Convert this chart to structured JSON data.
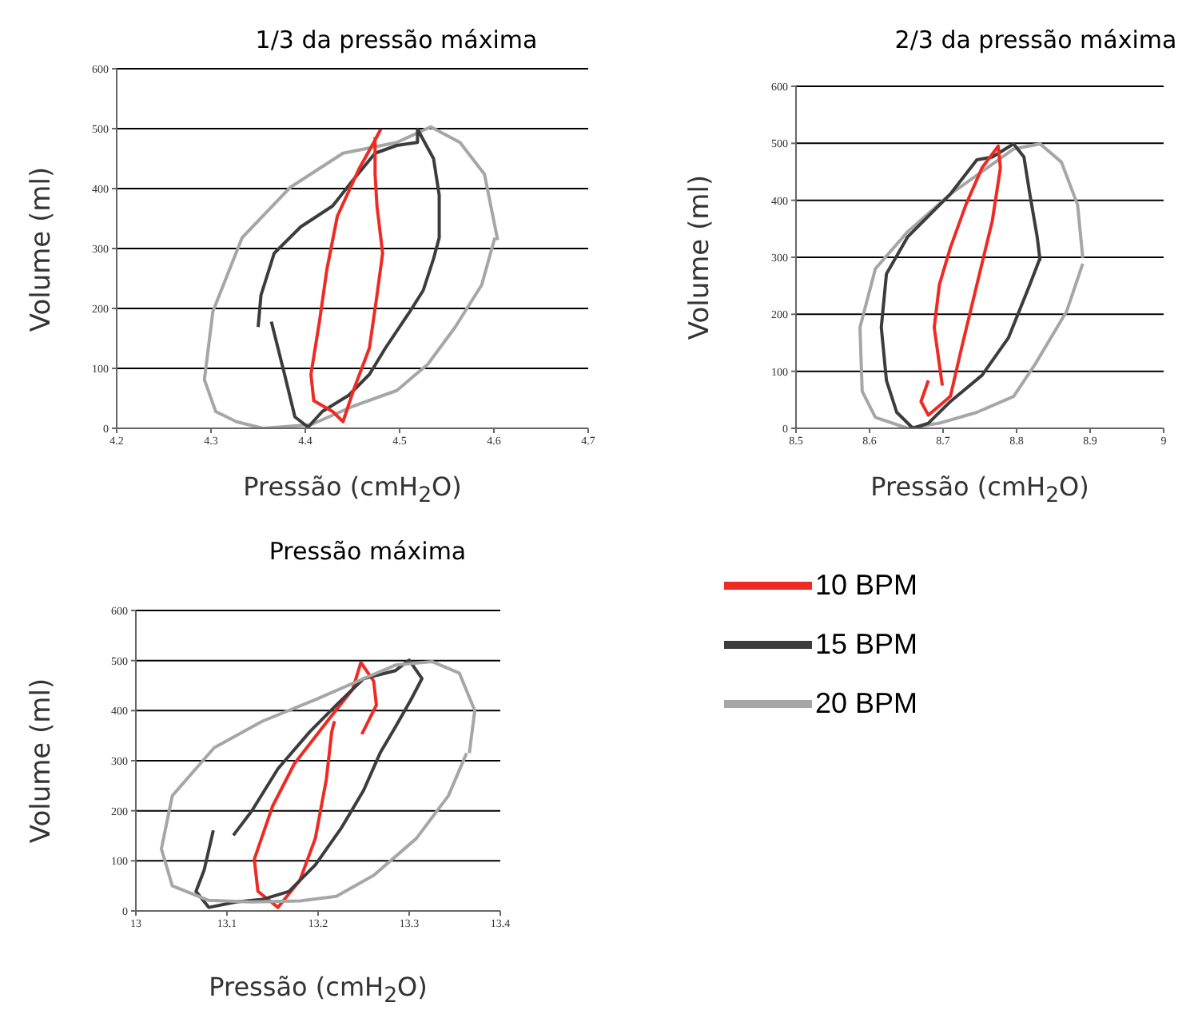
{
  "chart_data": [
    {
      "type": "line",
      "title": "1/3 da pressão máxima",
      "xlabel": "Pressão (cmH$_{2}$O)",
      "ylabel": "Volume (ml)",
      "xlim": [
        4.2,
        4.7
      ],
      "xticks": [
        4.2,
        4.3,
        4.4,
        4.5,
        4.6,
        4.7
      ],
      "ylim": [
        0,
        600
      ],
      "yticks": [
        0,
        100,
        200,
        300,
        400,
        500,
        600
      ],
      "grid": "y",
      "legend": false,
      "series": [
        {
          "color": "#a6a6a6",
          "x": [
            4.604,
            4.59,
            4.564,
            4.533,
            4.497,
            4.44,
            4.384,
            4.333,
            4.302,
            4.293,
            4.305,
            4.327,
            4.355,
            4.406,
            4.451,
            4.497,
            4.53,
            4.559,
            4.587,
            4.601
          ],
          "values": [
            314,
            424,
            477,
            503,
            477,
            459,
            402,
            318,
            195,
            81,
            28,
            11,
            0,
            6,
            37,
            63,
            107,
            169,
            239,
            318
          ]
        },
        {
          "color": "#3c3c3c",
          "x": [
            4.35,
            4.353,
            4.367,
            4.395,
            4.429,
            4.451,
            4.474,
            4.497,
            4.519,
            4.519,
            4.536,
            4.542,
            4.542,
            4.536,
            4.525,
            4.511,
            4.485,
            4.468,
            4.446,
            4.418,
            4.403,
            4.389,
            4.378,
            4.364
          ],
          "values": [
            169,
            222,
            292,
            336,
            371,
            415,
            459,
            472,
            477,
            499,
            450,
            389,
            318,
            283,
            230,
            195,
            134,
            90,
            55,
            28,
            2,
            19,
            90,
            178
          ]
        },
        {
          "color": "#ee2a24",
          "x": [
            4.48,
            4.474,
            4.457,
            4.434,
            4.423,
            4.415,
            4.406,
            4.409,
            4.429,
            4.44,
            4.451,
            4.468,
            4.476,
            4.482,
            4.476,
            4.474,
            4.474
          ],
          "values": [
            499,
            481,
            433,
            354,
            266,
            178,
            90,
            46,
            28,
            11,
            63,
            134,
            222,
            292,
            371,
            424,
            486
          ]
        }
      ]
    },
    {
      "type": "line",
      "title": "2/3 da pressão máxima",
      "xlabel": "Pressão (cmH$_{2}$O)",
      "ylabel": "Volume (ml)",
      "xlim": [
        8.5,
        9
      ],
      "xticks": [
        8.5,
        8.6,
        8.7,
        8.8,
        8.9,
        9
      ],
      "ylim": [
        0,
        600
      ],
      "yticks": [
        0,
        100,
        200,
        300,
        400,
        500,
        600
      ],
      "grid": "y",
      "legend": false,
      "series": [
        {
          "color": "#a6a6a6",
          "x": [
            8.89,
            8.883,
            8.861,
            8.832,
            8.796,
            8.76,
            8.71,
            8.652,
            8.608,
            8.587,
            8.59,
            8.608,
            8.652,
            8.695,
            8.746,
            8.796,
            8.825,
            8.868,
            8.89
          ],
          "values": [
            299,
            392,
            467,
            499,
            490,
            457,
            411,
            345,
            280,
            177,
            65,
            19,
            0,
            9,
            28,
            56,
            112,
            205,
            289
          ]
        },
        {
          "color": "#3c3c3c",
          "x": [
            8.832,
            8.828,
            8.818,
            8.81,
            8.796,
            8.767,
            8.746,
            8.71,
            8.652,
            8.623,
            8.616,
            8.623,
            8.637,
            8.659,
            8.68,
            8.71,
            8.753,
            8.789,
            8.818,
            8.832
          ],
          "values": [
            294,
            336,
            411,
            476,
            499,
            476,
            471,
            411,
            336,
            271,
            177,
            84,
            28,
            0,
            9,
            47,
            93,
            159,
            252,
            299
          ]
        },
        {
          "color": "#ee2a24",
          "x": [
            8.699,
            8.688,
            8.695,
            8.71,
            8.731,
            8.753,
            8.775,
            8.778,
            8.767,
            8.746,
            8.725,
            8.71,
            8.68,
            8.67,
            8.68
          ],
          "values": [
            75,
            177,
            252,
            317,
            392,
            457,
            495,
            457,
            364,
            252,
            140,
            56,
            23,
            47,
            84
          ]
        }
      ]
    },
    {
      "type": "line",
      "title": "Pressão máxima",
      "xlabel": "Pressão (cmH$_{2}$O)",
      "ylabel": "Volume (ml)",
      "xlim": [
        13,
        13.4
      ],
      "xticks": [
        13,
        13.1,
        13.2,
        13.3,
        13.4
      ],
      "ylim": [
        0,
        600
      ],
      "yticks": [
        0,
        100,
        200,
        300,
        400,
        500,
        600
      ],
      "grid": "y",
      "legend": "right",
      "series": [
        {
          "name": "10 BPM",
          "color": "#ee2a24",
          "x": [
            13.248,
            13.264,
            13.261,
            13.247,
            13.238,
            13.215,
            13.174,
            13.15,
            13.13,
            13.134,
            13.156,
            13.18,
            13.197,
            13.209,
            13.215,
            13.218
          ],
          "values": [
            353,
            411,
            459,
            496,
            443,
            390,
            294,
            209,
            103,
            39,
            7,
            61,
            145,
            262,
            358,
            379
          ]
        },
        {
          "name": "15 BPM",
          "color": "#3c3c3c",
          "x": [
            13.085,
            13.075,
            13.066,
            13.08,
            13.11,
            13.139,
            13.168,
            13.197,
            13.226,
            13.25,
            13.268,
            13.285,
            13.302,
            13.314,
            13.3,
            13.285,
            13.25,
            13.22,
            13.191,
            13.156,
            13.127,
            13.107
          ],
          "values": [
            161,
            82,
            39,
            7,
            18,
            23,
            39,
            92,
            167,
            241,
            315,
            368,
            422,
            464,
            501,
            480,
            464,
            411,
            358,
            284,
            199,
            151
          ]
        },
        {
          "name": "20 BPM",
          "color": "#a6a6a6",
          "x": [
            13.366,
            13.372,
            13.355,
            13.325,
            13.285,
            13.25,
            13.197,
            13.139,
            13.086,
            13.04,
            13.028,
            13.04,
            13.08,
            13.127,
            13.18,
            13.22,
            13.261,
            13.308,
            13.343,
            13.363
          ],
          "values": [
            315,
            400,
            475,
            498,
            491,
            464,
            422,
            379,
            326,
            230,
            124,
            50,
            21,
            18,
            20,
            29,
            71,
            145,
            230,
            315
          ]
        }
      ]
    }
  ]
}
